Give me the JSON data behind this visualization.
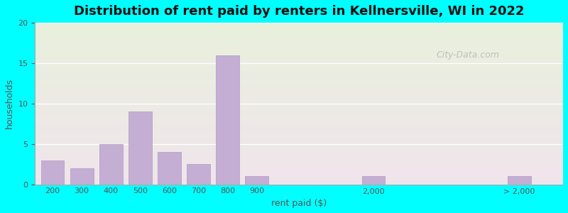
{
  "title": "Distribution of rent paid by renters in Kellnersville, WI in 2022",
  "xlabel": "rent paid ($)",
  "ylabel": "households",
  "background_color": "#00FFFF",
  "color_top": "#e8f0dc",
  "color_bottom": "#f0e4ec",
  "bar_color": "#c4aed4",
  "bar_edge_color": "#b09cc0",
  "ylim": [
    0,
    20
  ],
  "yticks": [
    0,
    5,
    10,
    15,
    20
  ],
  "categories": [
    "200",
    "300",
    "400",
    "500",
    "600",
    "700",
    "800",
    "900",
    "2,000",
    "> 2,000"
  ],
  "positions": [
    0,
    1,
    2,
    3,
    4,
    5,
    6,
    7,
    11,
    16
  ],
  "values": [
    3,
    2,
    5,
    9,
    4,
    2.5,
    16,
    1,
    1,
    1
  ],
  "title_fontsize": 13,
  "axis_label_fontsize": 9,
  "tick_fontsize": 8,
  "watermark_text": "City-Data.com",
  "xlim": [
    -0.6,
    17.5
  ]
}
